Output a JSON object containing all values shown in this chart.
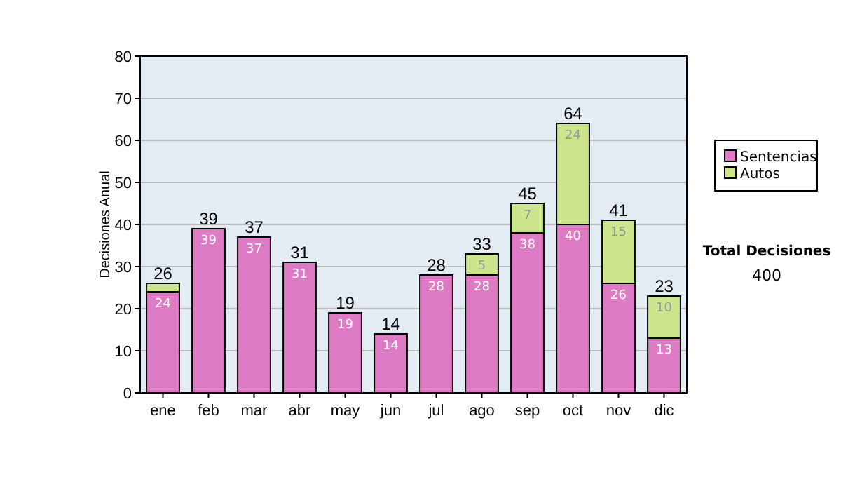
{
  "chart_data": {
    "type": "bar",
    "stacked": true,
    "ylabel": "Decisiones Anual",
    "categories": [
      "ene",
      "feb",
      "mar",
      "abr",
      "may",
      "jun",
      "jul",
      "ago",
      "sep",
      "oct",
      "nov",
      "dic"
    ],
    "series": [
      {
        "name": "Sentencias",
        "color": "#dd7cc4",
        "values": [
          24,
          39,
          37,
          31,
          19,
          14,
          28,
          28,
          38,
          40,
          26,
          13
        ],
        "value_labels": [
          "24",
          "39",
          "37",
          "31",
          "19",
          "14",
          "28",
          "28",
          "38",
          "40",
          "26",
          "13"
        ]
      },
      {
        "name": "Autos",
        "color": "#cde68e",
        "values": [
          2,
          0,
          0,
          0,
          0,
          0,
          0,
          5,
          7,
          24,
          15,
          10
        ],
        "value_labels": [
          null,
          null,
          null,
          null,
          null,
          null,
          null,
          "5",
          "7",
          "24",
          "15",
          "10"
        ]
      }
    ],
    "totals": [
      "26",
      "39",
      "37",
      "31",
      "19",
      "14",
      "28",
      "33",
      "45",
      "64",
      "41",
      "23"
    ],
    "ylim": [
      0,
      80
    ],
    "yticks": [
      0,
      10,
      20,
      30,
      40,
      50,
      60,
      70,
      80
    ],
    "grid": "y",
    "legend": "right",
    "annotations": [
      "Total Decisiones",
      "400"
    ]
  }
}
